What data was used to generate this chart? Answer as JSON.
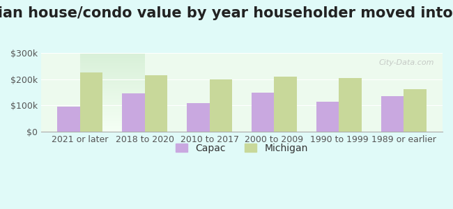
{
  "title": "Median house/condo value by year householder moved into unit",
  "categories": [
    "2021 or later",
    "2018 to 2020",
    "2010 to 2017",
    "2000 to 2009",
    "1990 to 1999",
    "1989 or earlier"
  ],
  "capac_values": [
    95000,
    145000,
    110000,
    150000,
    115000,
    135000
  ],
  "michigan_values": [
    225000,
    215000,
    200000,
    210000,
    205000,
    163000
  ],
  "capac_color": "#c9a8e0",
  "michigan_color": "#c8d89a",
  "background_color": "#e0faf8",
  "plot_bg_gradient_top": "#f0fff0",
  "plot_bg_gradient_bottom": "#e8f8f0",
  "ylim": [
    0,
    300000
  ],
  "yticks": [
    0,
    100000,
    200000,
    300000
  ],
  "ytick_labels": [
    "$0",
    "$100k",
    "$200k",
    "$300k"
  ],
  "legend_labels": [
    "Capac",
    "Michigan"
  ],
  "watermark": "City-Data.com",
  "title_fontsize": 15,
  "tick_fontsize": 9,
  "legend_fontsize": 10
}
